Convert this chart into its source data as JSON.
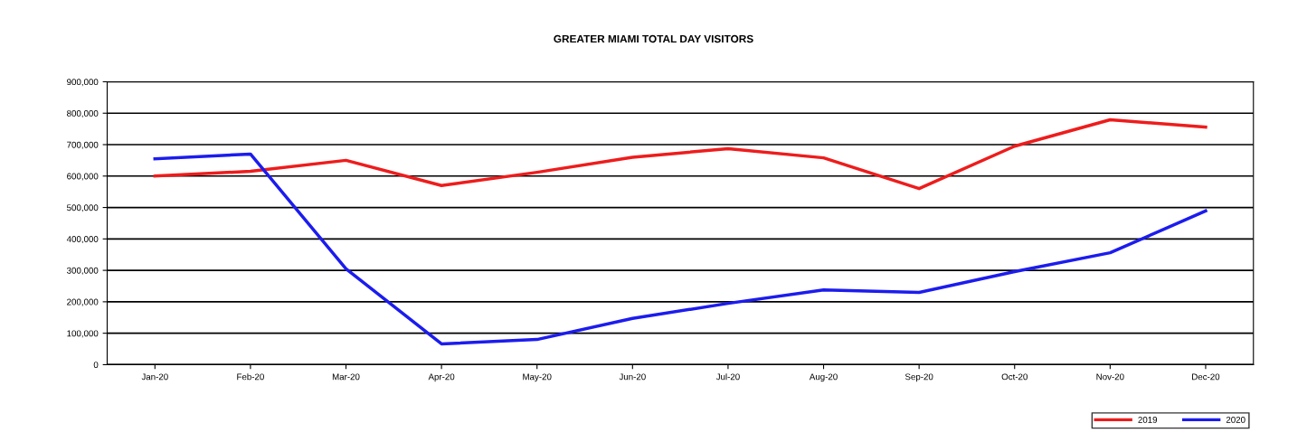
{
  "chart_data": {
    "type": "line",
    "title": "GREATER MIAMI TOTAL DAY VISITORS",
    "categories": [
      "Jan-20",
      "Feb-20",
      "Mar-20",
      "Apr-20",
      "May-20",
      "Jun-20",
      "Jul-20",
      "Aug-20",
      "Sep-20",
      "Oct-20",
      "Nov-20",
      "Dec-20"
    ],
    "series": [
      {
        "name": "2019",
        "color": "#ee1c1c",
        "values": [
          600000,
          615000,
          650000,
          570000,
          612000,
          660000,
          687000,
          658000,
          560000,
          695000,
          779000,
          756000
        ]
      },
      {
        "name": "2020",
        "color": "#1c1cee",
        "values": [
          655000,
          670000,
          305000,
          66000,
          80000,
          147000,
          195000,
          238000,
          230000,
          296000,
          356000,
          489000
        ]
      }
    ],
    "ylim": [
      0,
      900000
    ],
    "yticks": [
      {
        "value": 0,
        "label": "0"
      },
      {
        "value": 100000,
        "label": "100,000"
      },
      {
        "value": 200000,
        "label": "200,000"
      },
      {
        "value": 300000,
        "label": "300,000"
      },
      {
        "value": 400000,
        "label": "400,000"
      },
      {
        "value": 500000,
        "label": "500,000"
      },
      {
        "value": 600000,
        "label": "600,000"
      },
      {
        "value": 700000,
        "label": "700,000"
      },
      {
        "value": 800000,
        "label": "800,000"
      },
      {
        "value": 900000,
        "label": "900,000"
      }
    ],
    "grid": "y",
    "legend": "bottom right",
    "marker": "none",
    "line_style": "solid"
  }
}
